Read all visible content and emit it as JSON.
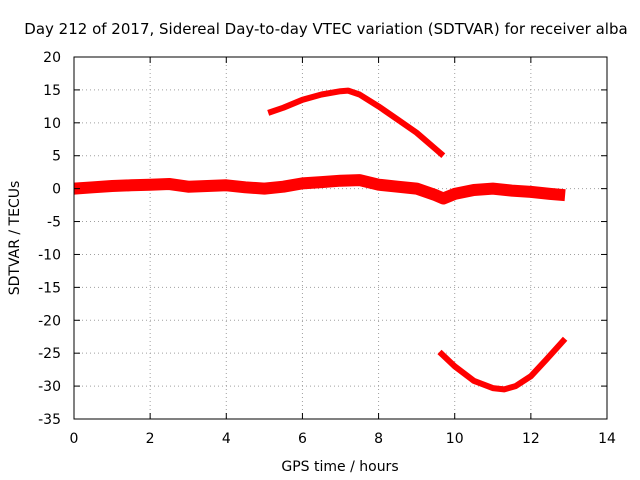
{
  "chart_data": {
    "type": "line",
    "title": "Day 212 of 2017, Sidereal Day-to-day VTEC variation (SDTVAR) for receiver alba",
    "xlabel": "GPS time / hours",
    "ylabel": "SDTVAR / TECUs",
    "xlim": [
      0,
      14
    ],
    "ylim": [
      -35,
      20
    ],
    "xticks": [
      0,
      2,
      4,
      6,
      8,
      10,
      12,
      14
    ],
    "yticks": [
      -35,
      -30,
      -25,
      -20,
      -15,
      -10,
      -5,
      0,
      5,
      10,
      15,
      20
    ],
    "grid": true,
    "legend": "none",
    "series_color": "#ff0000",
    "series": [
      {
        "name": "main-band",
        "x": [
          0.0,
          0.5,
          1.0,
          1.5,
          2.0,
          2.5,
          3.0,
          3.5,
          4.0,
          4.5,
          5.0,
          5.5,
          6.0,
          6.5,
          7.0,
          7.5,
          8.0,
          8.5,
          9.0,
          9.5,
          9.7,
          10.0,
          10.5,
          11.0,
          11.5,
          12.0,
          12.5,
          12.9
        ],
        "values": [
          0.0,
          0.2,
          0.4,
          0.5,
          0.6,
          0.7,
          0.3,
          0.4,
          0.5,
          0.2,
          0.0,
          0.3,
          0.8,
          1.0,
          1.2,
          1.3,
          0.6,
          0.3,
          0.0,
          -1.0,
          -1.5,
          -0.8,
          -0.2,
          0.0,
          -0.3,
          -0.5,
          -0.8,
          -1.0
        ]
      },
      {
        "name": "upper-arc",
        "x": [
          5.1,
          5.5,
          6.0,
          6.5,
          7.0,
          7.2,
          7.5,
          8.0,
          8.5,
          9.0,
          9.5,
          9.7
        ],
        "values": [
          11.5,
          12.3,
          13.5,
          14.3,
          14.8,
          14.9,
          14.3,
          12.5,
          10.5,
          8.5,
          6.0,
          5.0
        ]
      },
      {
        "name": "lower-arc",
        "x": [
          9.6,
          10.0,
          10.5,
          11.0,
          11.3,
          11.6,
          12.0,
          12.4,
          12.9
        ],
        "values": [
          -24.8,
          -27.0,
          -29.2,
          -30.3,
          -30.5,
          -30.0,
          -28.5,
          -26.0,
          -22.8
        ]
      }
    ]
  }
}
